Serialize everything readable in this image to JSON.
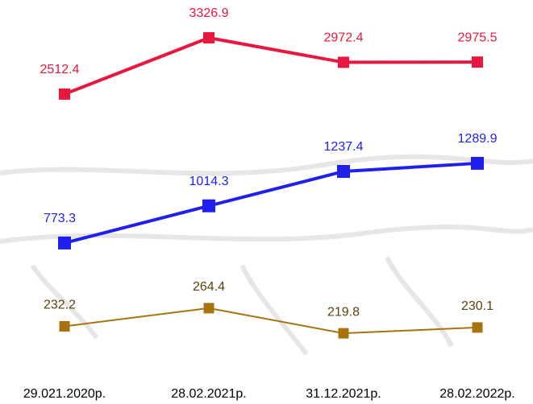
{
  "chart_data": {
    "type": "line",
    "categories": [
      "29.021.2020р.",
      "28.02.2021р.",
      "31.12.2021р.",
      "28.02.2022р."
    ],
    "series": [
      {
        "color": "#e8173f",
        "values": [
          2512.4,
          3326.9,
          2972.4,
          2975.5
        ],
        "ylim": [
          2400,
          3400
        ]
      },
      {
        "color": "#1f1ff0",
        "values": [
          773.3,
          1014.3,
          1237.4,
          1289.9
        ],
        "ylim": [
          700,
          1300
        ]
      },
      {
        "color": "#a8730f",
        "values": [
          232.2,
          264.4,
          219.8,
          230.1
        ],
        "ylim": [
          200,
          280
        ]
      }
    ]
  }
}
